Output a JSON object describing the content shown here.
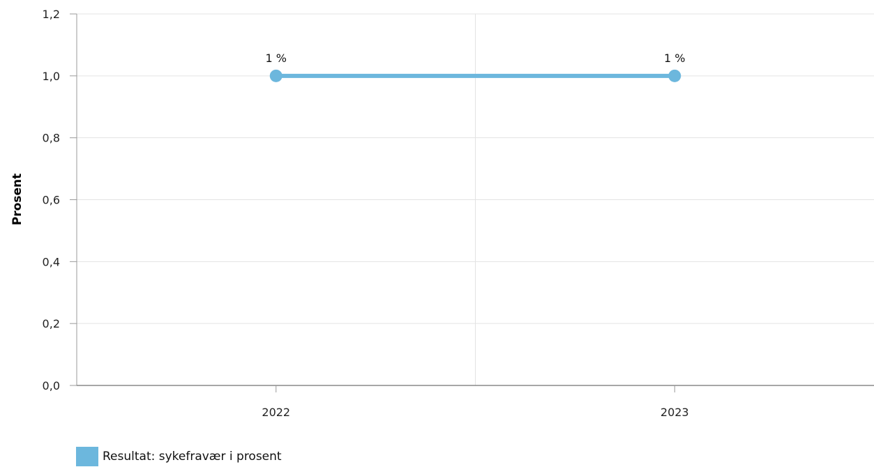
{
  "chart_data": {
    "type": "line",
    "categories": [
      "2022",
      "2023"
    ],
    "series": [
      {
        "name": "Resultat: sykefravær i prosent",
        "values": [
          1.0,
          1.0
        ],
        "data_labels": [
          "1 %",
          "1 %"
        ],
        "color": "#6cb7dd"
      }
    ],
    "ylabel": "Prosent",
    "xlabel": "",
    "ylim": [
      0,
      1.2
    ],
    "yticks": [
      "0,0",
      "0,2",
      "0,4",
      "0,6",
      "0,8",
      "1,0",
      "1,2"
    ],
    "grid": true,
    "legend_position": "bottom-left"
  }
}
